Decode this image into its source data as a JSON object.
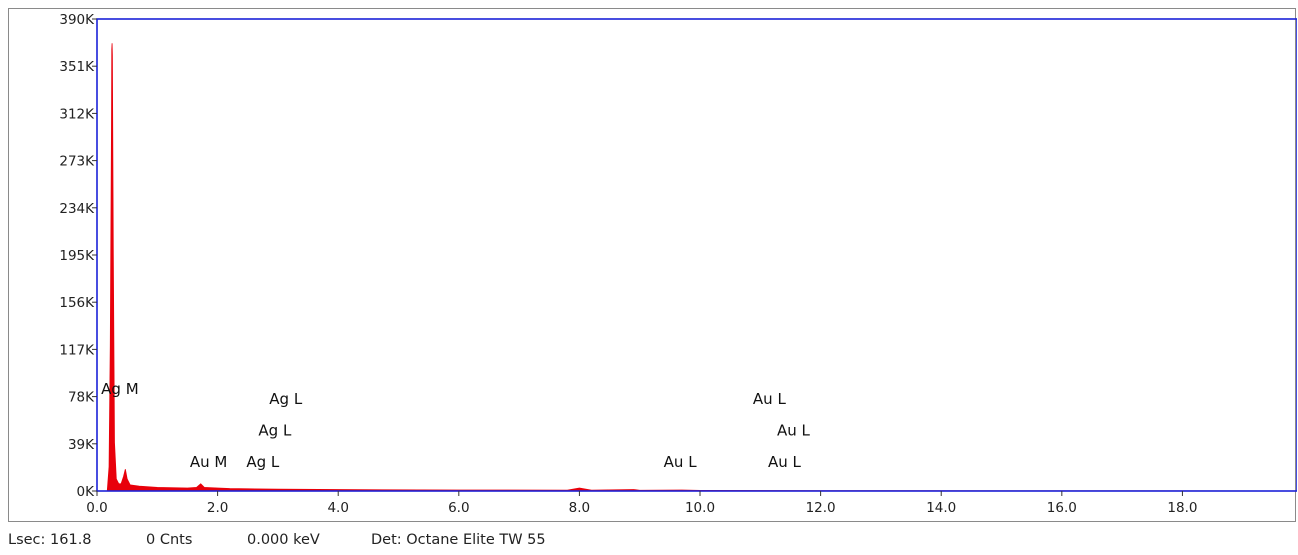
{
  "chart_data": {
    "type": "area",
    "xlim": [
      0,
      19.9
    ],
    "ylim": [
      0,
      390
    ],
    "y_tick_values": [
      0,
      39,
      78,
      117,
      156,
      195,
      234,
      273,
      312,
      351,
      390
    ],
    "y_tick_labels": [
      "0K",
      "39K",
      "78K",
      "117K",
      "156K",
      "195K",
      "234K",
      "273K",
      "312K",
      "351K",
      "390K"
    ],
    "x_tick_values": [
      0.0,
      2.0,
      4.0,
      6.0,
      8.0,
      10.0,
      12.0,
      14.0,
      16.0,
      18.0
    ],
    "x_tick_labels": [
      "0.0",
      "2.0",
      "4.0",
      "6.0",
      "8.0",
      "10.0",
      "12.0",
      "14.0",
      "16.0",
      "18.0"
    ],
    "series": [
      {
        "color": "#e8000b",
        "points": [
          [
            0.0,
            0
          ],
          [
            0.17,
            0
          ],
          [
            0.2,
            20
          ],
          [
            0.22,
            120
          ],
          [
            0.24,
            300
          ],
          [
            0.245,
            365
          ],
          [
            0.25,
            370
          ],
          [
            0.255,
            360
          ],
          [
            0.27,
            200
          ],
          [
            0.29,
            40
          ],
          [
            0.32,
            10
          ],
          [
            0.36,
            6
          ],
          [
            0.4,
            6
          ],
          [
            0.44,
            12
          ],
          [
            0.47,
            18
          ],
          [
            0.5,
            10
          ],
          [
            0.55,
            5
          ],
          [
            0.7,
            4
          ],
          [
            1.0,
            3
          ],
          [
            1.5,
            2.5
          ],
          [
            1.65,
            3
          ],
          [
            1.72,
            6
          ],
          [
            1.78,
            3
          ],
          [
            2.0,
            2.5
          ],
          [
            2.2,
            2
          ],
          [
            2.5,
            1.8
          ],
          [
            3.0,
            1.5
          ],
          [
            4.0,
            1.2
          ],
          [
            6.0,
            0.8
          ],
          [
            7.8,
            0.7
          ],
          [
            8.0,
            2.5
          ],
          [
            8.2,
            0.7
          ],
          [
            8.9,
            1.2
          ],
          [
            9.0,
            0.6
          ],
          [
            9.7,
            0.8
          ],
          [
            10.0,
            0.5
          ],
          [
            12.0,
            0.3
          ],
          [
            16.0,
            0.2
          ],
          [
            19.9,
            0.1
          ]
        ]
      }
    ],
    "annotations": [
      {
        "text": "Ag M",
        "x": 0.38,
        "y": 80
      },
      {
        "text": "Au M",
        "x": 1.85,
        "y": 20
      },
      {
        "text": "Ag L",
        "x": 2.75,
        "y": 20
      },
      {
        "text": "Ag L",
        "x": 2.95,
        "y": 46
      },
      {
        "text": "Ag L",
        "x": 3.13,
        "y": 72
      },
      {
        "text": "Au L",
        "x": 9.67,
        "y": 20
      },
      {
        "text": "Au L",
        "x": 11.15,
        "y": 72
      },
      {
        "text": "Au L",
        "x": 11.55,
        "y": 46
      },
      {
        "text": "Au L",
        "x": 11.4,
        "y": 20
      }
    ]
  },
  "status": {
    "lsec": "Lsec: 161.8",
    "cnts": "0 Cnts",
    "kev": "0.000 keV",
    "det": "Det: Octane Elite TW 55"
  }
}
